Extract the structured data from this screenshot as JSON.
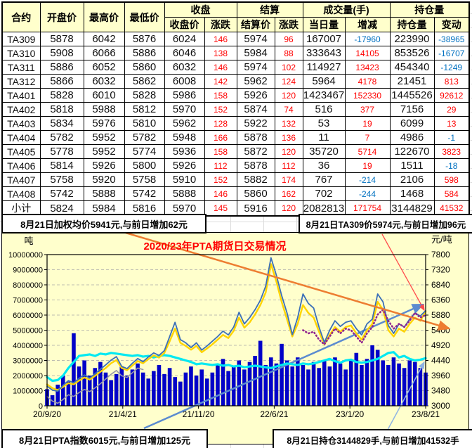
{
  "banners": {
    "top_left": "8月21日加权均价5941元,与前日增加62元",
    "top_right": "8月21日TA309价5974元,与前日增加96元",
    "bottom_left": "8月21日PTA指数6015元,与前日增加125元",
    "bottom_right": "8月21日持仓3144829手,与前日增加41532手"
  },
  "table": {
    "group_headers": {
      "contract": "合约",
      "open": "开盘价",
      "high": "最高价",
      "low": "最低价",
      "close_group": "收盘",
      "settle_group": "结算",
      "volume_group": "成交量(手)",
      "oi_group": "持仓量"
    },
    "sub_headers": {
      "close": "收盘价",
      "close_chg": "涨跌",
      "settle": "结算价",
      "settle_chg": "涨跌",
      "volume": "当日量",
      "volume_chg": "增减",
      "oi": "持仓量",
      "oi_chg": "变动"
    },
    "rows": [
      {
        "contract": "TA309",
        "open": 5878,
        "high": 6042,
        "low": 5876,
        "close": 6024,
        "close_chg": 146,
        "settle": 5974,
        "settle_chg": 96,
        "volume": 167007,
        "volume_chg": -17960,
        "oi": 223990,
        "oi_chg": -38965
      },
      {
        "contract": "TA310",
        "open": 5908,
        "high": 6066,
        "low": 5886,
        "close": 6046,
        "close_chg": 138,
        "settle": 5984,
        "settle_chg": 88,
        "volume": 333643,
        "volume_chg": 14105,
        "oi": 853526,
        "oi_chg": -16707
      },
      {
        "contract": "TA311",
        "open": 5886,
        "high": 6052,
        "low": 5860,
        "close": 6032,
        "close_chg": 146,
        "settle": 5974,
        "settle_chg": 102,
        "volume": 114927,
        "volume_chg": 13423,
        "oi": 454340,
        "oi_chg": -1249
      },
      {
        "contract": "TA312",
        "open": 5866,
        "high": 6032,
        "low": 5862,
        "close": 6008,
        "close_chg": 142,
        "settle": 5962,
        "settle_chg": 124,
        "volume": 5964,
        "volume_chg": 4178,
        "oi": 21451,
        "oi_chg": 813
      },
      {
        "contract": "TA401",
        "open": 5828,
        "high": 6010,
        "low": 5828,
        "close": 5986,
        "close_chg": 158,
        "settle": 5926,
        "settle_chg": 120,
        "volume": 1423467,
        "volume_chg": 152330,
        "oi": 1445526,
        "oi_chg": 92612
      },
      {
        "contract": "TA402",
        "open": 5818,
        "high": 5988,
        "low": 5812,
        "close": 5970,
        "close_chg": 152,
        "settle": 5874,
        "settle_chg": 74,
        "volume": 516,
        "volume_chg": 377,
        "oi": 7156,
        "oi_chg": 29
      },
      {
        "contract": "TA403",
        "open": 5834,
        "high": 5976,
        "low": 5810,
        "close": 5962,
        "close_chg": 128,
        "settle": 5922,
        "settle_chg": 132,
        "volume": 53,
        "volume_chg": 19,
        "oi": 6099,
        "oi_chg": 13
      },
      {
        "contract": "TA404",
        "open": 5782,
        "high": 5952,
        "low": 5782,
        "close": 5948,
        "close_chg": 166,
        "settle": 5878,
        "settle_chg": 136,
        "volume": 11,
        "volume_chg": 7,
        "oi": 4986,
        "oi_chg": -1
      },
      {
        "contract": "TA405",
        "open": 5778,
        "high": 5952,
        "low": 5774,
        "close": 5936,
        "close_chg": 158,
        "settle": 5872,
        "settle_chg": 120,
        "volume": 35720,
        "volume_chg": 5714,
        "oi": 122670,
        "oi_chg": 3823
      },
      {
        "contract": "TA406",
        "open": 5814,
        "high": 5926,
        "low": 5800,
        "close": 5926,
        "close_chg": 112,
        "settle": 5878,
        "settle_chg": 112,
        "volume": 36,
        "volume_chg": 19,
        "oi": 1511,
        "oi_chg": -18
      },
      {
        "contract": "TA407",
        "open": 5758,
        "high": 5920,
        "low": 5758,
        "close": 5910,
        "close_chg": 152,
        "settle": 5882,
        "settle_chg": 174,
        "volume": 767,
        "volume_chg": -214,
        "oi": 2106,
        "oi_chg": 598
      },
      {
        "contract": "TA408",
        "open": 5742,
        "high": 5888,
        "low": 5742,
        "close": 5888,
        "close_chg": 146,
        "settle": 5860,
        "settle_chg": 162,
        "volume": 702,
        "volume_chg": -244,
        "oi": 1468,
        "oi_chg": 584
      },
      {
        "contract": "小计",
        "open": 5824,
        "high": 5984,
        "low": 5816,
        "close": 5970,
        "close_chg": 145,
        "settle": 5916,
        "settle_chg": 120,
        "volume": 2082813,
        "volume_chg": 171754,
        "oi": 3144829,
        "oi_chg": 41532
      }
    ],
    "colors": {
      "positive": "#ff0000",
      "negative": "#0070c0",
      "header_bg": "#ffffcc"
    }
  },
  "chart_data": {
    "type": "composite",
    "title": "2020/23年PTA期货日交易情况",
    "title_color": "#ff0000",
    "unit_left": "吨",
    "unit_right": "元/吨",
    "y_left": {
      "min": 0,
      "max": 10000000,
      "step": 1000000
    },
    "y_right": {
      "min": 3000,
      "max": 7800,
      "step": 480
    },
    "x_labels": [
      "20/9/20",
      "21/4/21",
      "21/11/20",
      "22/6/21",
      "23/1/20",
      "23/8/21"
    ],
    "series": [
      {
        "name": "volume-bars",
        "type": "bar",
        "axis": "left",
        "color": "#0202c8",
        "values_millions": [
          1.1,
          0.7,
          1.4,
          2.0,
          1.6,
          4.8,
          2.6,
          3.0,
          2.0,
          2.5,
          2.9,
          2.2,
          1.7,
          2.1,
          2.6,
          2.0,
          2.4,
          2.8,
          2.2,
          1.8,
          2.3,
          2.7,
          2.1,
          2.5,
          1.9,
          1.6,
          2.2,
          2.6,
          2.0,
          2.4,
          1.8,
          2.2,
          2.7,
          3.1,
          2.3,
          2.6,
          3.0,
          2.4,
          2.9,
          3.3,
          4.3,
          2.7,
          3.2,
          2.8,
          4.1,
          3.0,
          2.6,
          3.2,
          2.7,
          2.4,
          2.9,
          2.5,
          3.0,
          2.6,
          3.2,
          2.8,
          2.4,
          3.0,
          3.5,
          2.7,
          3.1,
          4.0,
          3.7,
          3.0,
          2.7,
          3.2,
          2.8,
          2.5,
          3.0,
          2.9,
          2.5,
          2.2
        ]
      },
      {
        "name": "open-interest",
        "type": "line",
        "axis": "left",
        "color": "#00e9f2",
        "width": 3.2,
        "values_millions": [
          1.9,
          1.65,
          1.7,
          2.0,
          2.5,
          2.9,
          3.3,
          3.35,
          3.4,
          3.3,
          3.45,
          3.4,
          3.5,
          3.45,
          3.4,
          3.35,
          3.3,
          3.35,
          3.25,
          3.3,
          3.2,
          3.3,
          3.35,
          3.3,
          3.2,
          3.1,
          3.0,
          2.9,
          2.75,
          2.8,
          2.75,
          2.7,
          2.75,
          2.65,
          2.7,
          2.6,
          2.65,
          2.55,
          2.6,
          2.65,
          2.6,
          2.55,
          2.5,
          2.6,
          2.7,
          2.8,
          2.75,
          2.7,
          2.8,
          2.75,
          2.8,
          2.9,
          3.0,
          3.1,
          2.95,
          2.85,
          3.0,
          3.05,
          2.9,
          2.85,
          2.9,
          3.0,
          3.1,
          3.3,
          3.5,
          3.55,
          3.2,
          3.3,
          3.1,
          3.0,
          3.05,
          3.15
        ]
      },
      {
        "name": "avg-price-gray",
        "type": "line",
        "axis": "right",
        "color": "#9898a8",
        "width": 1.6,
        "values": [
          3300,
          3150,
          3080,
          3200,
          3350,
          3300,
          3420,
          3520,
          3450,
          3570,
          3700,
          3850,
          4000,
          4120,
          3950,
          3900,
          4050,
          4200,
          4150,
          null,
          null,
          null,
          null,
          null,
          null,
          null,
          null,
          null,
          null,
          null,
          null,
          null,
          null,
          null,
          null,
          null,
          null,
          null,
          null,
          null,
          null,
          null,
          null,
          null,
          null,
          null,
          null,
          null,
          null,
          null,
          null,
          null,
          null,
          null,
          null,
          null,
          null,
          null,
          null,
          null,
          null,
          null,
          null,
          null,
          null,
          null,
          null,
          null,
          null,
          null,
          null,
          null
        ]
      },
      {
        "name": "pta-index-yellow",
        "type": "line",
        "axis": "right",
        "color": "#ffd400",
        "width": 2.4,
        "values": [
          3680,
          3560,
          3500,
          3600,
          3720,
          3680,
          3800,
          3900,
          3830,
          3950,
          4080,
          4200,
          4350,
          4450,
          4200,
          4130,
          4280,
          4420,
          4350,
          4480,
          4600,
          4530,
          4680,
          5050,
          5450,
          5000,
          4900,
          4780,
          4900,
          4700,
          4820,
          4950,
          5100,
          5250,
          5150,
          5380,
          5800,
          5480,
          5650,
          5900,
          6200,
          6600,
          7500,
          6950,
          6300,
          5750,
          5200,
          5600,
          6200,
          5950,
          5800,
          5350,
          4950,
          5250,
          5500,
          5350,
          5500,
          5550,
          5300,
          5100,
          5400,
          5600,
          6300,
          6050,
          5400,
          5200,
          5450,
          5350,
          5600,
          5800,
          5700,
          6000
        ]
      },
      {
        "name": "futures-price-blue",
        "type": "line",
        "axis": "right",
        "color": "#3a6fb8",
        "width": 1.8,
        "values": [
          3620,
          3500,
          3460,
          3650,
          3800,
          3730,
          3870,
          3980,
          3880,
          4020,
          4160,
          4300,
          4450,
          4560,
          4250,
          4180,
          4350,
          4500,
          4400,
          4550,
          4680,
          4600,
          4750,
          5200,
          5650,
          5100,
          5000,
          4850,
          5000,
          4770,
          4900,
          5050,
          5200,
          5370,
          5250,
          5500,
          5970,
          5600,
          5800,
          6050,
          6350,
          6800,
          7700,
          7150,
          6500,
          5950,
          5260,
          5800,
          6550,
          6250,
          6100,
          5500,
          5010,
          5400,
          5700,
          5520,
          5650,
          5700,
          5450,
          5250,
          5600,
          5750,
          6550,
          6300,
          5545,
          5300,
          5600,
          5500,
          5750,
          5950,
          5850,
          6020
        ]
      },
      {
        "name": "ta309-purple",
        "type": "line-dotted",
        "axis": "right",
        "color": "#91278f",
        "width": 2.6,
        "values": [
          null,
          null,
          null,
          null,
          null,
          null,
          null,
          null,
          null,
          null,
          null,
          null,
          null,
          null,
          null,
          null,
          null,
          null,
          null,
          null,
          null,
          null,
          null,
          null,
          null,
          null,
          null,
          null,
          null,
          null,
          null,
          null,
          null,
          null,
          null,
          null,
          null,
          null,
          null,
          null,
          null,
          null,
          null,
          null,
          null,
          null,
          null,
          null,
          5400,
          5300,
          5350,
          5100,
          4950,
          5200,
          5450,
          5300,
          5450,
          5400,
          5200,
          5000,
          5300,
          5500,
          5900,
          6050,
          5700,
          5450,
          5600,
          5500,
          5700,
          5950,
          5800,
          5880
        ]
      }
    ],
    "trendlines": [
      {
        "name": "downtrend-orange",
        "color": "#ed7d31",
        "width": 2.5,
        "from": [
          176,
          0
        ],
        "to": [
          636,
          136
        ],
        "arrow": true
      },
      {
        "name": "uptrend-blue",
        "color": "#5b8bd0",
        "width": 2.5,
        "from": [
          202,
          278
        ],
        "to": [
          599,
          102
        ],
        "arrow": true
      },
      {
        "name": "uptrend-lightblue",
        "color": "#8fb4e3",
        "width": 1.5,
        "from": [
          543,
          291
        ],
        "to": [
          601,
          184
        ],
        "arrow": true
      },
      {
        "name": "downtrend-red",
        "color": "#ff4d4d",
        "width": 1.3,
        "from": [
          541,
          2
        ],
        "to": [
          601,
          110
        ],
        "arrow": true
      }
    ],
    "grid": {
      "horizontal": true,
      "color": "#a8a8a8",
      "dash": "4 3"
    },
    "plot_bg": "#ffffcc"
  }
}
